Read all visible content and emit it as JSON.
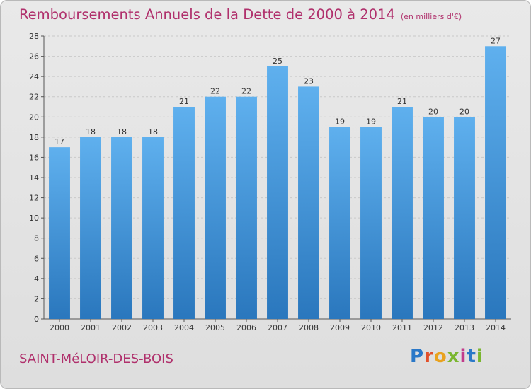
{
  "header": {
    "title": "Remboursements Annuels de la Dette de 2000 à 2014",
    "unit": "(en milliers d'€)"
  },
  "footer": {
    "commune": "SAINT-MéLOIR-DES-BOIS",
    "logo_letters": [
      "P",
      "r",
      "o",
      "x",
      "i",
      "t",
      "i"
    ]
  },
  "colors": {
    "title": "#b0306c",
    "bar_light": "#5fb0ee",
    "bar_dark": "#2a77bd",
    "grid": "#c9c9c9"
  },
  "chart_data": {
    "type": "bar",
    "title": "Remboursements Annuels de la Dette de 2000 à 2014",
    "subtitle": "(en milliers d'€)",
    "categories": [
      "2000",
      "2001",
      "2002",
      "2003",
      "2004",
      "2005",
      "2006",
      "2007",
      "2008",
      "2009",
      "2010",
      "2011",
      "2012",
      "2013",
      "2014"
    ],
    "values": [
      17,
      18,
      18,
      18,
      21,
      22,
      22,
      25,
      23,
      19,
      19,
      21,
      20,
      20,
      27
    ],
    "ylim": [
      0,
      28
    ],
    "yticks": [
      0,
      2,
      4,
      6,
      8,
      10,
      12,
      14,
      16,
      18,
      20,
      22,
      24,
      26,
      28
    ],
    "grid": true,
    "legend": "none"
  }
}
